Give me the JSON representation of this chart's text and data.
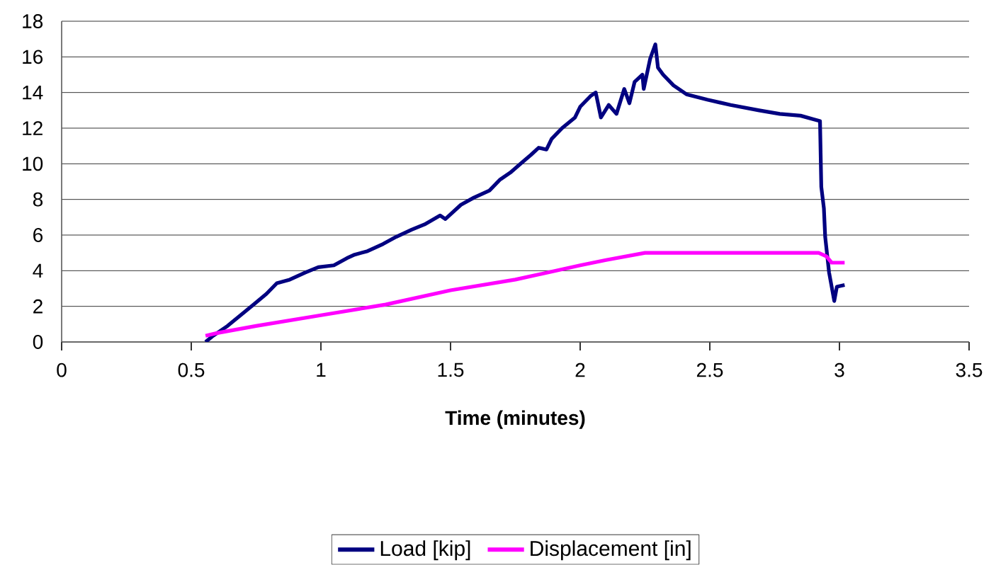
{
  "chart_data": {
    "type": "line",
    "xlabel": "**Time (minutes)**",
    "xlim": [
      0,
      3.5
    ],
    "xticks": [
      0,
      0.5,
      1,
      1.5,
      2,
      2.5,
      3,
      3.5
    ],
    "ylim": [
      0,
      18
    ],
    "yticks": [
      0,
      2,
      4,
      6,
      8,
      10,
      12,
      14,
      16,
      18
    ],
    "grid": "y",
    "legend": "bottom",
    "marker": "none",
    "line_style": "solid",
    "series": [
      {
        "name": "Load [kip]",
        "color": "#000080",
        "x": [
          0.555,
          0.58,
          0.64,
          0.69,
          0.74,
          0.79,
          0.83,
          0.88,
          0.94,
          0.99,
          1.05,
          1.1,
          1.13,
          1.18,
          1.24,
          1.29,
          1.35,
          1.4,
          1.46,
          1.48,
          1.54,
          1.59,
          1.65,
          1.69,
          1.73,
          1.77,
          1.81,
          1.84,
          1.87,
          1.89,
          1.93,
          1.98,
          2.0,
          2.04,
          2.06,
          2.08,
          2.11,
          2.14,
          2.17,
          2.19,
          2.21,
          2.24,
          2.245,
          2.27,
          2.29,
          2.3,
          2.32,
          2.36,
          2.41,
          2.49,
          2.58,
          2.69,
          2.77,
          2.85,
          2.9,
          2.925,
          2.93,
          2.94,
          2.945,
          2.96,
          2.98,
          2.99,
          3.02
        ],
        "values": [
          0,
          0.3,
          0.9,
          1.5,
          2.1,
          2.7,
          3.3,
          3.5,
          3.9,
          4.2,
          4.3,
          4.7,
          4.9,
          5.1,
          5.5,
          5.9,
          6.3,
          6.6,
          7.1,
          6.9,
          7.7,
          8.1,
          8.5,
          9.1,
          9.5,
          10.0,
          10.5,
          10.9,
          10.8,
          11.4,
          12.0,
          12.6,
          13.2,
          13.8,
          14.0,
          12.6,
          13.3,
          12.8,
          14.2,
          13.4,
          14.6,
          15.0,
          14.2,
          15.9,
          16.7,
          15.4,
          15.0,
          14.4,
          13.9,
          13.6,
          13.3,
          13.0,
          12.8,
          12.7,
          12.5,
          12.4,
          8.7,
          7.5,
          5.9,
          3.9,
          2.3,
          3.1,
          3.2
        ]
      },
      {
        "name": "Displacement [in]",
        "color": "#ff00ff",
        "x": [
          0.555,
          0.6,
          0.75,
          1.0,
          1.25,
          1.5,
          1.75,
          2.0,
          2.1,
          2.25,
          2.92,
          2.95,
          2.97,
          3.02
        ],
        "values": [
          0.35,
          0.5,
          0.9,
          1.5,
          2.1,
          2.9,
          3.5,
          4.3,
          4.6,
          5.0,
          5.0,
          4.8,
          4.45,
          4.45
        ]
      }
    ]
  }
}
